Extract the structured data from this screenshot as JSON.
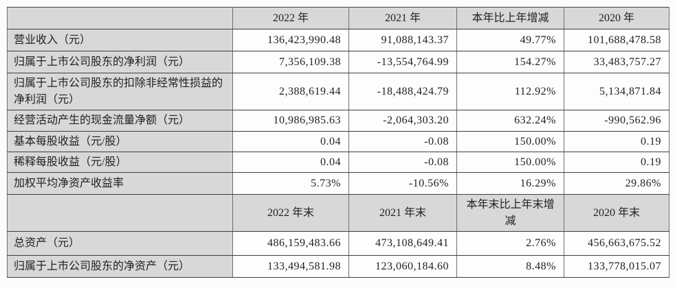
{
  "colors": {
    "header_bg": "#d8d8d8",
    "label_bg": "#d8d8d8",
    "cell_bg": "#fdfdfd",
    "border_dark": "#3d3d3d",
    "border_light": "#6e6e6e",
    "text": "#212121"
  },
  "table": {
    "sections": [
      {
        "headers": [
          "",
          "2022 年",
          "2021 年",
          "本年比上年增减",
          "2020 年"
        ],
        "rows": [
          {
            "label": "营业收入（元）",
            "values": [
              "136,423,990.48",
              "91,088,143.37",
              "49.77%",
              "101,688,478.58"
            ]
          },
          {
            "label": "归属于上市公司股东的净利润（元）",
            "values": [
              "7,356,109.38",
              "-13,554,764.99",
              "154.27%",
              "33,483,757.27"
            ]
          },
          {
            "label": "归属于上市公司股东的扣除非经常性损益的净利润（元）",
            "values": [
              "2,388,619.44",
              "-18,488,424.79",
              "112.92%",
              "5,134,871.84"
            ]
          },
          {
            "label": "经营活动产生的现金流量净额（元）",
            "values": [
              "10,986,985.63",
              "-2,064,303.20",
              "632.24%",
              "-990,562.96"
            ]
          },
          {
            "label": "基本每股收益（元/股）",
            "values": [
              "0.04",
              "-0.08",
              "150.00%",
              "0.19"
            ]
          },
          {
            "label": "稀释每股收益（元/股）",
            "values": [
              "0.04",
              "-0.08",
              "150.00%",
              "0.19"
            ]
          },
          {
            "label": "加权平均净资产收益率",
            "values": [
              "5.73%",
              "-10.56%",
              "16.29%",
              "29.86%"
            ]
          }
        ]
      },
      {
        "headers": [
          "",
          "2022 年末",
          "2021 年末",
          "本年末比上年末增减",
          "2020 年末"
        ],
        "rows": [
          {
            "label": "总资产（元）",
            "values": [
              "486,159,483.66",
              "473,108,649.41",
              "2.76%",
              "456,663,675.52"
            ]
          },
          {
            "label": "归属于上市公司股东的净资产（元）",
            "values": [
              "133,494,581.98",
              "123,060,184.60",
              "8.48%",
              "133,778,015.07"
            ]
          }
        ]
      }
    ]
  }
}
